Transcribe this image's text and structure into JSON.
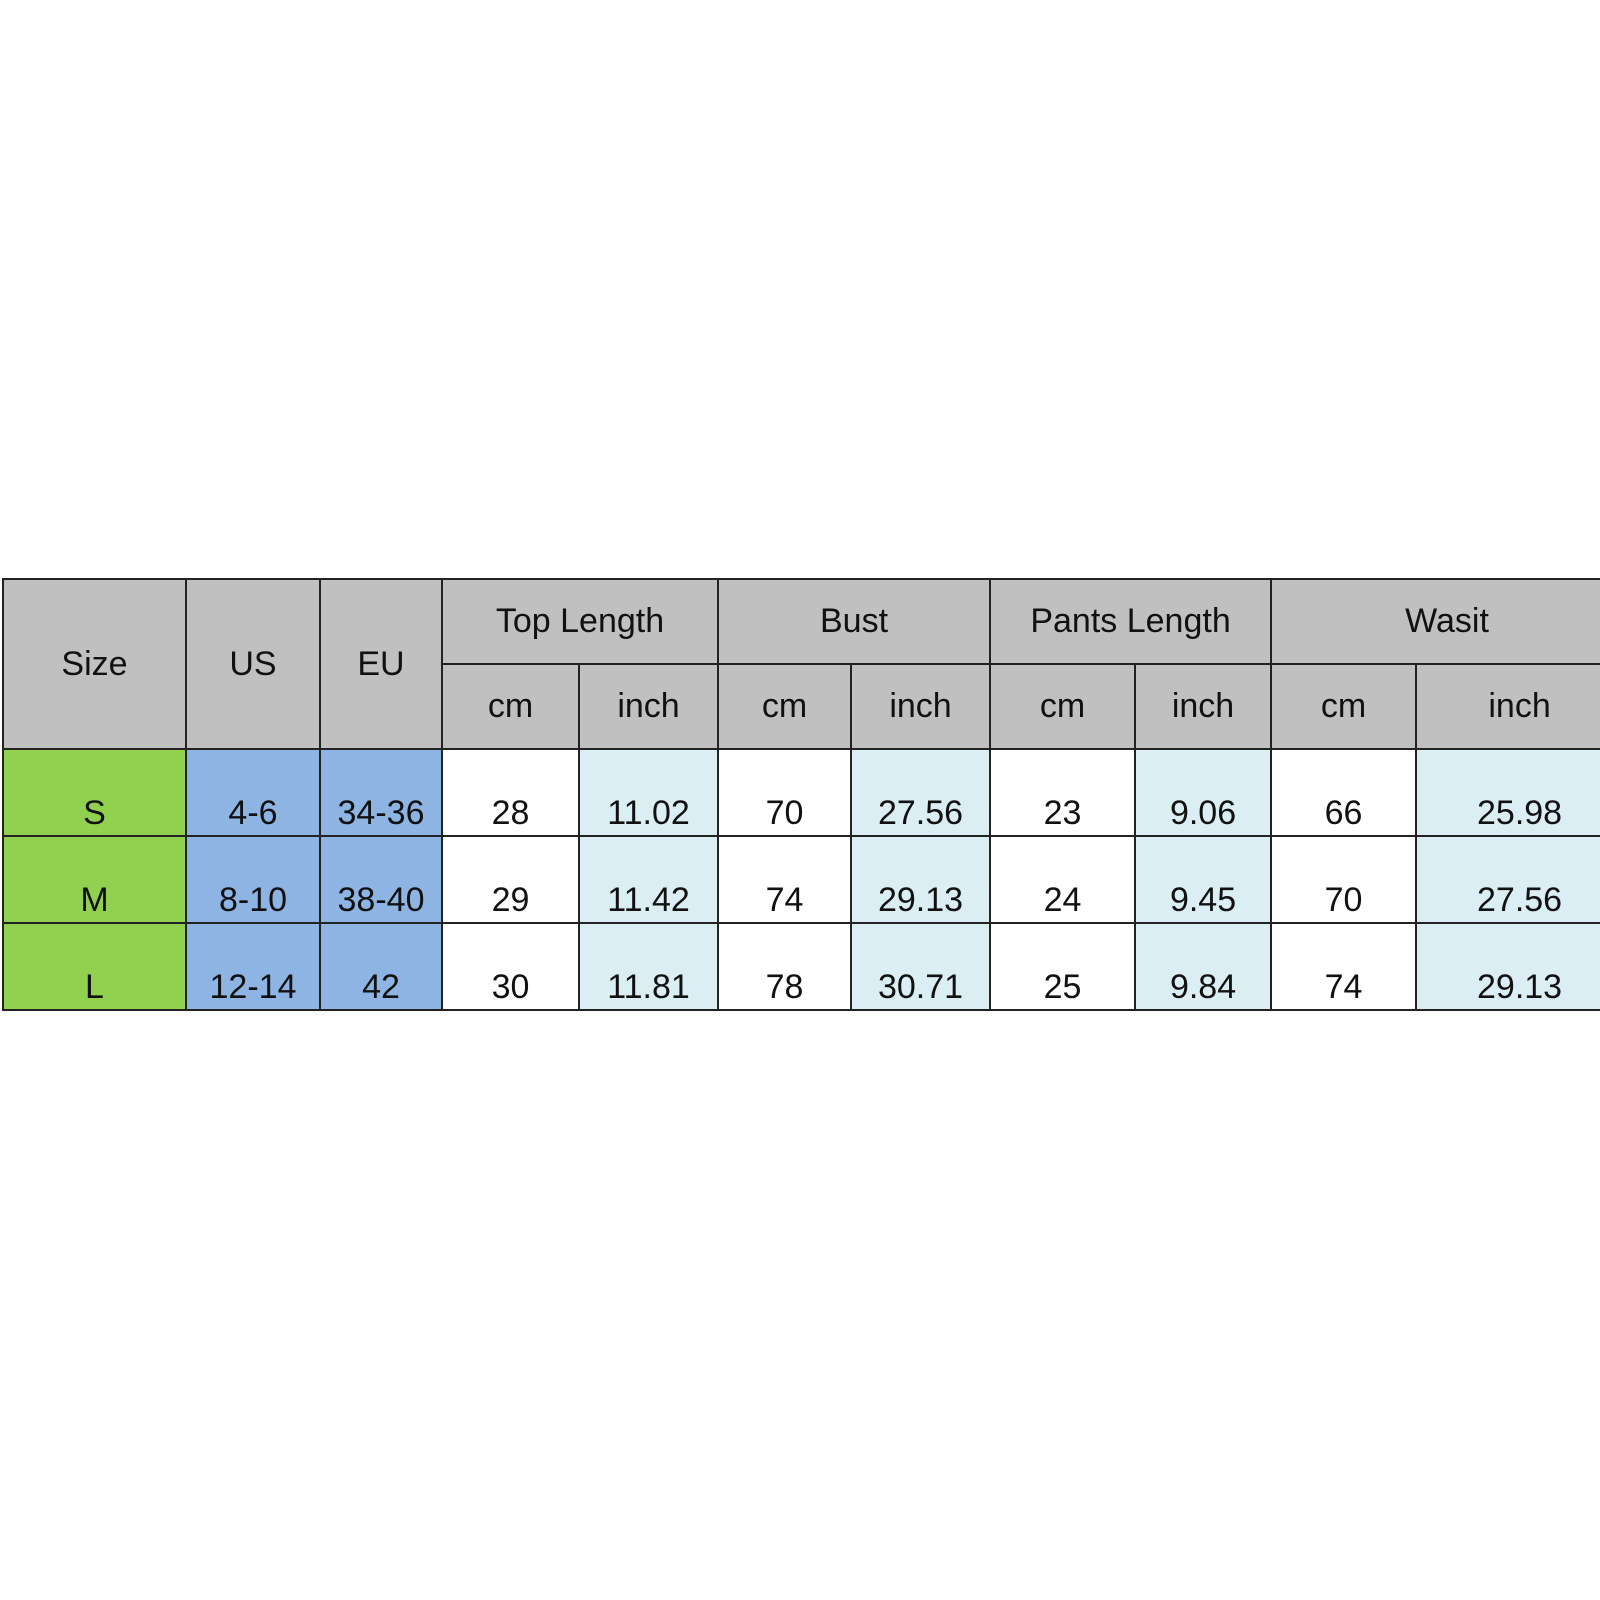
{
  "table": {
    "headers": {
      "size": "Size",
      "us": "US",
      "eu": "EU",
      "groups": [
        "Top Length",
        "Bust",
        "Pants Length",
        "Wasit"
      ],
      "units": [
        "cm",
        "inch",
        "cm",
        "inch",
        "cm",
        "inch",
        "cm",
        "inch"
      ]
    },
    "rows": [
      {
        "size": "S",
        "us": "4-6",
        "eu": "34-36",
        "values": [
          "28",
          "11.02",
          "70",
          "27.56",
          "23",
          "9.06",
          "66",
          "25.98"
        ]
      },
      {
        "size": "M",
        "us": "8-10",
        "eu": "38-40",
        "values": [
          "29",
          "11.42",
          "74",
          "29.13",
          "24",
          "9.45",
          "70",
          "27.56"
        ]
      },
      {
        "size": "L",
        "us": "12-14",
        "eu": "42",
        "values": [
          "30",
          "11.81",
          "78",
          "30.71",
          "25",
          "9.84",
          "74",
          "29.13"
        ]
      }
    ]
  },
  "colors": {
    "header": "#c0c0c0",
    "size": "#92d050",
    "us_eu": "#8db4e2",
    "inch": "#daeef3"
  }
}
